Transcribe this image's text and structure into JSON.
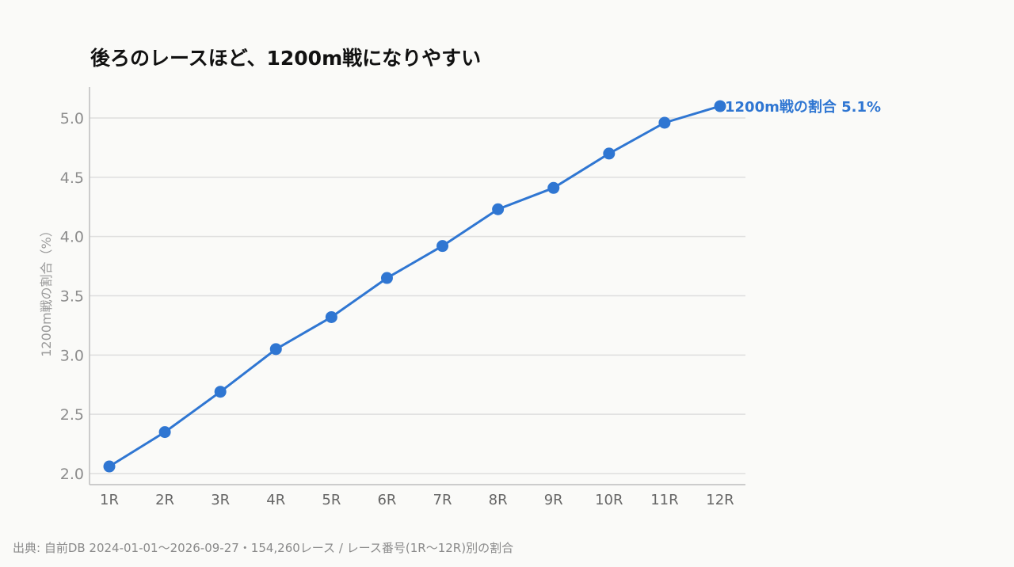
{
  "title": "後ろのレースほど、1200m戦になりやすい",
  "source": "出典: 自前DB 2024-01-01〜2026-09-27・154,260レース / レース番号(1R〜12R)別の割合",
  "colors": {
    "line": "#2f76d2",
    "grid": "#dedede",
    "axis": "#bdbdbd"
  },
  "chart_data": {
    "type": "line",
    "categories": [
      "1R",
      "2R",
      "3R",
      "4R",
      "5R",
      "6R",
      "7R",
      "8R",
      "9R",
      "10R",
      "11R",
      "12R"
    ],
    "series": [
      {
        "name": "1200m戦の割合",
        "values": [
          2.06,
          2.35,
          2.69,
          3.05,
          3.32,
          3.65,
          3.92,
          4.23,
          4.41,
          4.7,
          4.96,
          5.1
        ]
      }
    ],
    "end_label": "1200m戦の割合 5.1%",
    "ylabel": "1200m戦の割合（%）",
    "xlabel": "",
    "ylim": [
      1.92,
      5.26
    ],
    "yticks": [
      "2.0",
      "2.5",
      "3.0",
      "3.5",
      "4.0",
      "4.5",
      "5.0"
    ],
    "grid": "horizontal"
  }
}
